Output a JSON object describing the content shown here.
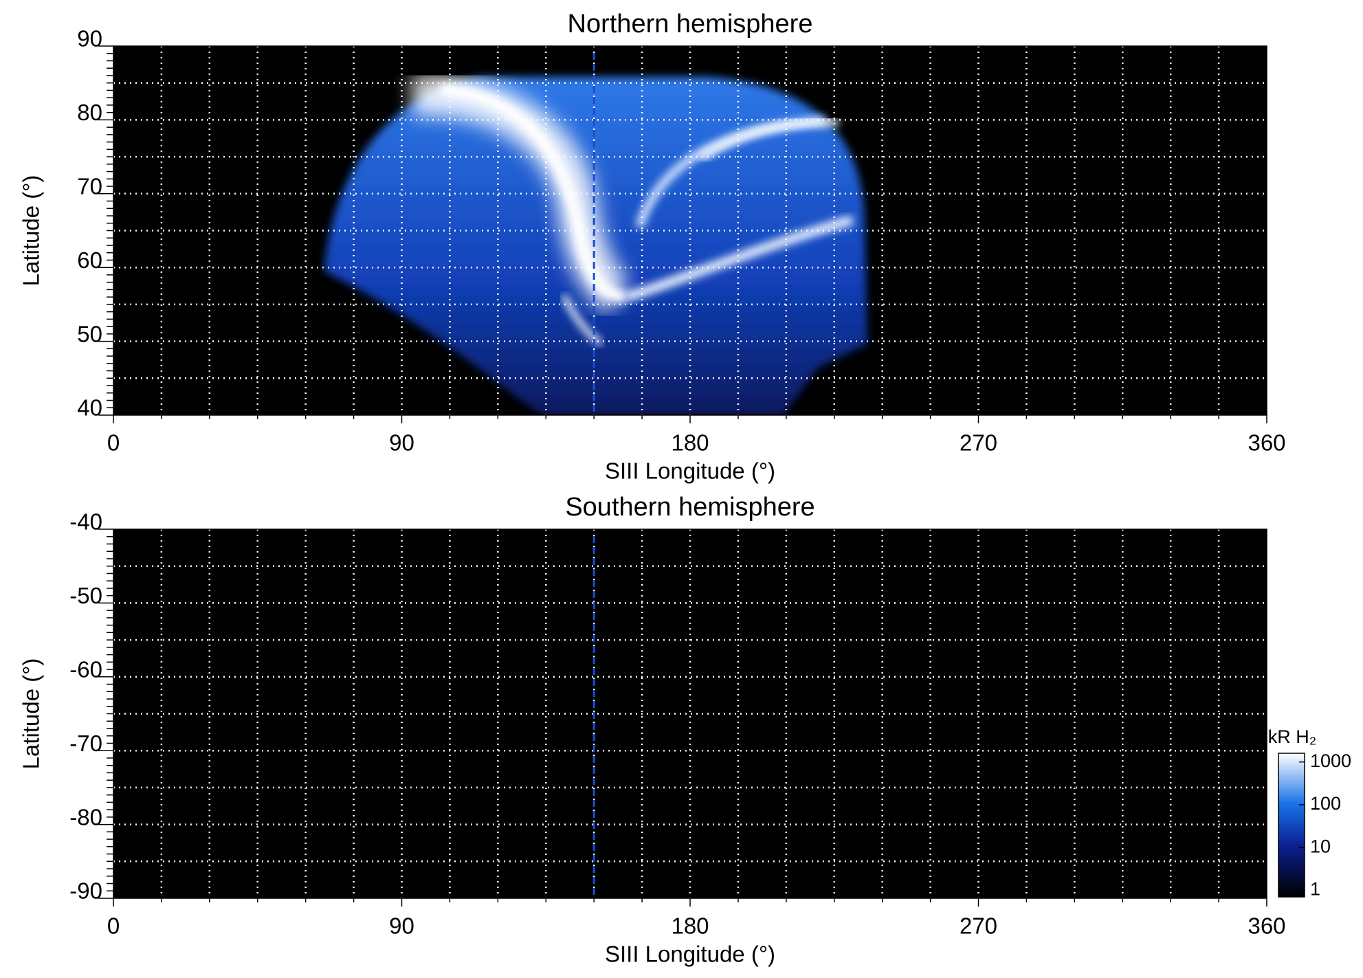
{
  "chart_data": [
    {
      "type": "heatmap",
      "title": "Northern hemisphere",
      "xlabel": "SIII Longitude (°)",
      "ylabel": "Latitude (°)",
      "xlim": [
        0,
        360
      ],
      "xticks": [
        0,
        90,
        180,
        270,
        360
      ],
      "ylim": [
        40,
        90
      ],
      "yticks": [
        40,
        50,
        60,
        70,
        80,
        90
      ],
      "grid": true,
      "background": "#000000",
      "marker_longitude": 150,
      "marker_color": "#1a4fd0"
    },
    {
      "type": "heatmap",
      "title": "Southern hemisphere",
      "xlabel": "SIII Longitude (°)",
      "ylabel": "Latitude (°)",
      "xlim": [
        0,
        360
      ],
      "xticks": [
        0,
        90,
        180,
        270,
        360
      ],
      "ylim": [
        -90,
        -40
      ],
      "yticks": [
        -90,
        -80,
        -70,
        -60,
        -50,
        -40
      ],
      "grid": true,
      "background": "#000000",
      "marker_longitude": 150,
      "marker_color": "#1a4fd0",
      "colorbar": {
        "label": "kR H₂",
        "log": true,
        "lim": [
          0.7,
          1600
        ],
        "ticks": [
          1,
          10,
          100,
          1000
        ]
      }
    }
  ]
}
